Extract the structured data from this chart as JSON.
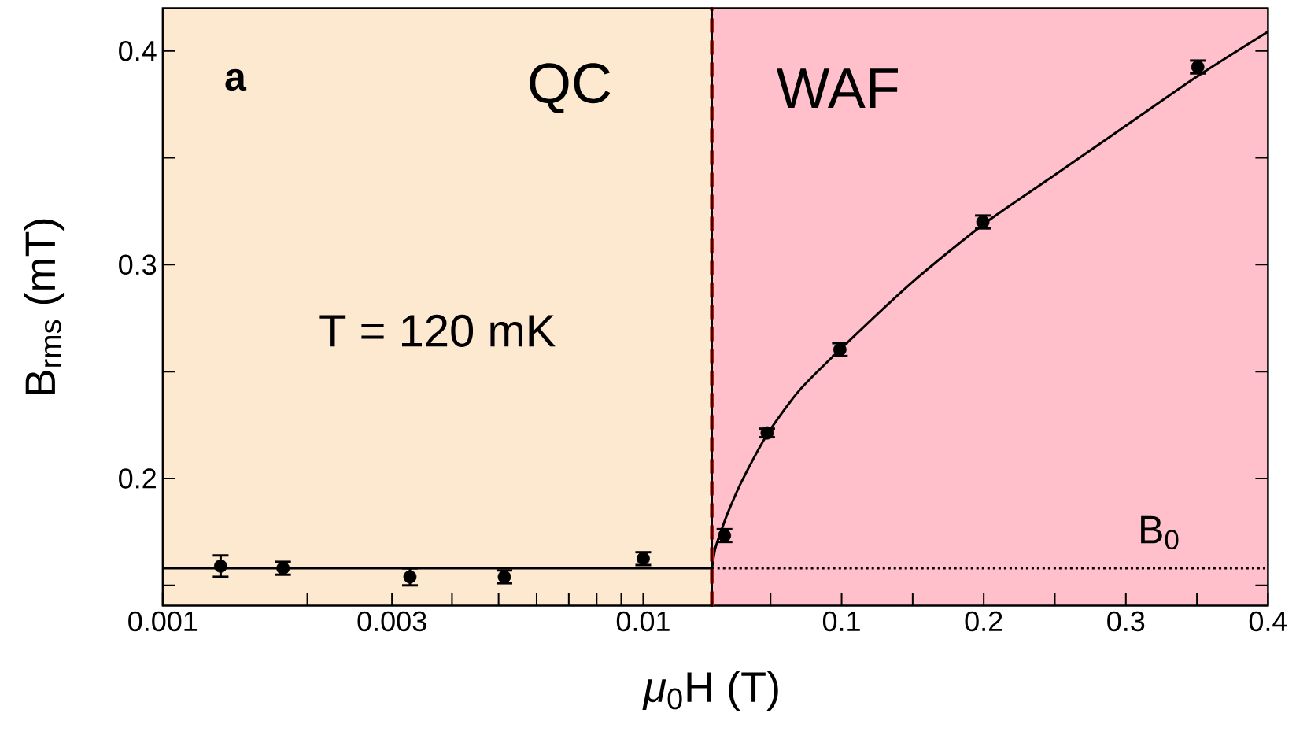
{
  "chart_data": [
    {
      "type": "scatter",
      "ylabel": "B$_{rms}$ (mT)",
      "log": "x",
      "xlim": [
        0.001,
        0.0139
      ],
      "ylim": [
        0.1405,
        0.42
      ],
      "xticks": [
        0.001,
        {
          "value": 0.002,
          "label": null
        },
        0.003,
        {
          "value": 0.004,
          "label": null
        },
        {
          "value": 0.005,
          "label": null
        },
        {
          "value": 0.006,
          "label": null
        },
        {
          "value": 0.007,
          "label": null
        },
        {
          "value": 0.008,
          "label": null
        },
        {
          "value": 0.009,
          "label": null
        },
        0.01
      ],
      "yticks": [
        {
          "value": 0.15,
          "label": null
        },
        0.2,
        {
          "value": 0.25,
          "label": null
        },
        0.3,
        {
          "value": 0.35,
          "label": null
        },
        0.4
      ],
      "series": [
        {
          "marker": "circle",
          "color": "#000000",
          "x": [
            0.00132,
            0.00178,
            0.00327,
            0.00514,
            0.01
          ],
          "values": [
            0.159,
            0.158,
            0.154,
            0.154,
            0.1625
          ],
          "errors": [
            0.005,
            0.003,
            0.004,
            0.003,
            0.003
          ]
        },
        {
          "type": "line",
          "marker": "none",
          "color": "#000000",
          "line_style": "solid",
          "x": [
            0.001,
            0.0139
          ],
          "values": [
            0.158,
            0.158
          ]
        }
      ],
      "bands": [
        {
          "axis": "x",
          "from": 0.001,
          "to": 0.0139,
          "color": "#fde9cf"
        }
      ],
      "ref_lines": [
        {
          "axis": "x",
          "value": 0.0139,
          "color": "#ff0000",
          "line_style": "dashed"
        }
      ],
      "annotations": [
        "a",
        "QC",
        "T = 120 mK"
      ]
    },
    {
      "type": "scatter",
      "xlabel": "*μ*$_{0}$H (T)",
      "xlim": [
        0.0088,
        0.4
      ],
      "ylim": [
        0.1405,
        0.42
      ],
      "tick_labels": "x",
      "xticks": [
        {
          "value": 0.05,
          "label": null
        },
        0.1,
        {
          "value": 0.15,
          "label": null
        },
        0.2,
        {
          "value": 0.25,
          "label": null
        },
        0.3,
        {
          "value": 0.35,
          "label": null
        },
        0.4
      ],
      "yticks": [
        {
          "value": 0.15,
          "label": null
        },
        0.2,
        {
          "value": 0.25,
          "label": null
        },
        0.3,
        {
          "value": 0.35,
          "label": null
        },
        0.4
      ],
      "series": [
        {
          "marker": "circle",
          "color": "#000000",
          "x": [
            0.0176,
            0.0476,
            0.0988,
            0.1994,
            0.3506
          ],
          "values": [
            0.1733,
            0.2213,
            0.2603,
            0.32,
            0.3925
          ],
          "errors": [
            0.003,
            0.002,
            0.003,
            0.003,
            0.003
          ]
        },
        {
          "type": "line",
          "marker": "none",
          "color": "#000000",
          "line_style": "solid",
          "x": [
            0.0088,
            0.011,
            0.015,
            0.02,
            0.03,
            0.048,
            0.07,
            0.1,
            0.15,
            0.2,
            0.25,
            0.3,
            0.35,
            0.4
          ],
          "values": [
            0.158,
            0.167,
            0.175,
            0.184,
            0.199,
            0.221,
            0.241,
            0.261,
            0.292,
            0.319,
            0.342,
            0.365,
            0.388,
            0.409
          ]
        },
        {
          "type": "line",
          "marker": "none",
          "color": "#000000",
          "line_style": "dotted",
          "x": [
            0.0088,
            0.4
          ],
          "values": [
            0.158,
            0.158
          ]
        }
      ],
      "bands": [
        {
          "axis": "x",
          "from": 0.0088,
          "to": 0.4,
          "color": "#ffc0cb"
        }
      ],
      "annotations": [
        "WAF",
        "B$_{0}$"
      ]
    }
  ]
}
